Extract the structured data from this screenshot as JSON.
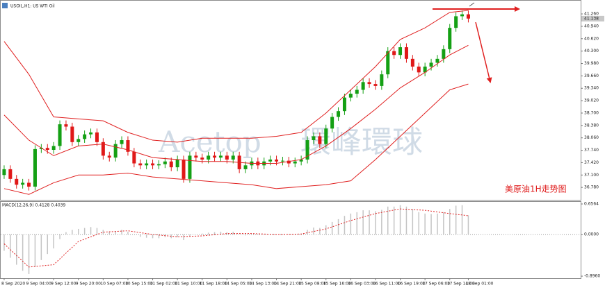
{
  "chart_data": [
    {
      "type": "candlestick",
      "title": "USOIL,H1: US WTI Oil",
      "annotation": "美原油1H走势图",
      "watermark": [
        "Acetop",
        "環峰環球"
      ],
      "categories": [
        "8 Sep 2020",
        null,
        null,
        null,
        "9 Sep 04:00",
        null,
        null,
        null,
        "9 Sep 12:00",
        null,
        null,
        null,
        "9 Sep 20:00",
        null,
        null,
        null,
        "10 Sep 07:00",
        null,
        null,
        null,
        "10 Sep 15:00",
        null,
        null,
        null,
        "11 Sep 02:00",
        null,
        null,
        null,
        "11 Sep 10:00",
        null,
        null,
        null,
        "11 Sep 18:00",
        null,
        null,
        null,
        "14 Sep 05:00",
        null,
        null,
        null,
        "14 Sep 13:00",
        null,
        null,
        null,
        "14 Sep 21:00",
        null,
        null,
        null,
        "15 Sep 08:00",
        null,
        null,
        null,
        "15 Sep 16:00",
        null,
        null,
        null,
        "16 Sep 03:00",
        null,
        null,
        null,
        "16 Sep 11:00",
        null,
        null,
        null,
        "16 Sep 19:00",
        null,
        null,
        null,
        "17 Sep 06:00",
        null,
        null,
        null,
        "17 Sep 14:00",
        null,
        null,
        "18 Sep 01:00"
      ],
      "open": [
        37.1,
        37.25,
        37.0,
        36.85,
        36.9,
        36.8,
        37.77,
        37.8,
        37.75,
        37.85,
        38.41,
        38.35,
        37.95,
        38.03,
        38.15,
        38.2,
        37.95,
        37.6,
        37.55,
        37.9,
        38.0,
        37.7,
        37.4,
        37.35,
        37.4,
        37.35,
        37.38,
        37.45,
        37.3,
        37.5,
        37.0,
        37.6,
        37.55,
        37.5,
        37.6,
        37.55,
        37.6,
        37.5,
        37.6,
        37.25,
        37.35,
        37.45,
        37.35,
        37.45,
        37.5,
        37.45,
        37.47,
        37.4,
        37.45,
        37.5,
        38.0,
        38.1,
        37.9,
        38.3,
        38.6,
        38.75,
        39.1,
        39.2,
        39.3,
        39.5,
        39.45,
        39.4,
        39.7,
        40.3,
        40.2,
        40.4,
        40.1,
        39.9,
        39.75,
        39.9,
        40.0,
        40.1,
        40.35,
        40.9,
        41.2,
        41.25
      ],
      "high": [
        37.35,
        37.35,
        37.1,
        37.0,
        37.0,
        37.87,
        37.9,
        37.9,
        37.95,
        38.51,
        38.51,
        38.45,
        38.13,
        38.25,
        38.3,
        38.3,
        38.05,
        37.7,
        38.0,
        38.1,
        38.1,
        37.8,
        37.5,
        37.5,
        37.5,
        37.48,
        37.55,
        37.55,
        37.6,
        37.6,
        37.7,
        37.7,
        37.65,
        37.7,
        37.7,
        37.7,
        37.7,
        37.7,
        37.7,
        37.45,
        37.55,
        37.55,
        37.55,
        37.6,
        37.6,
        37.57,
        37.57,
        37.55,
        37.6,
        38.1,
        38.2,
        38.2,
        38.4,
        38.7,
        38.85,
        39.2,
        39.3,
        39.4,
        39.6,
        39.6,
        39.55,
        39.8,
        40.4,
        40.4,
        40.5,
        40.5,
        40.2,
        40.0,
        40.0,
        40.1,
        40.2,
        40.45,
        41.0,
        41.3,
        41.35,
        41.35
      ],
      "low": [
        37.0,
        36.9,
        36.75,
        36.75,
        36.7,
        36.7,
        37.67,
        37.65,
        37.65,
        37.75,
        38.25,
        37.85,
        37.85,
        37.93,
        38.05,
        37.85,
        37.5,
        37.45,
        37.45,
        37.8,
        37.6,
        37.3,
        37.25,
        37.25,
        37.25,
        37.25,
        37.28,
        37.2,
        37.2,
        36.9,
        36.9,
        37.45,
        37.4,
        37.4,
        37.45,
        37.45,
        37.4,
        37.4,
        37.15,
        37.15,
        37.25,
        37.25,
        37.25,
        37.35,
        37.35,
        37.35,
        37.3,
        37.3,
        37.35,
        37.4,
        37.9,
        37.8,
        37.8,
        38.2,
        38.5,
        38.65,
        39.0,
        39.1,
        39.2,
        39.35,
        39.3,
        39.3,
        39.6,
        40.1,
        40.1,
        40.0,
        39.8,
        39.65,
        39.65,
        39.8,
        39.9,
        40.0,
        40.25,
        40.8,
        41.1,
        41.04
      ],
      "close": [
        37.25,
        37.0,
        36.85,
        36.9,
        36.8,
        37.77,
        37.8,
        37.75,
        37.85,
        38.41,
        38.35,
        37.95,
        38.03,
        38.15,
        38.2,
        37.95,
        37.6,
        37.55,
        37.9,
        38.0,
        37.7,
        37.4,
        37.35,
        37.4,
        37.35,
        37.38,
        37.45,
        37.3,
        37.5,
        37.0,
        37.6,
        37.55,
        37.5,
        37.6,
        37.55,
        37.6,
        37.5,
        37.6,
        37.25,
        37.35,
        37.45,
        37.35,
        37.45,
        37.5,
        37.45,
        37.47,
        37.4,
        37.45,
        37.5,
        38.0,
        38.1,
        37.9,
        38.3,
        38.6,
        38.75,
        39.1,
        39.2,
        39.3,
        39.5,
        39.45,
        39.4,
        39.7,
        40.3,
        40.2,
        40.4,
        40.1,
        39.9,
        39.75,
        39.9,
        40.0,
        40.1,
        40.35,
        40.9,
        41.2,
        41.25,
        41.14
      ],
      "up_color": "#14a014",
      "down_color": "#e01818",
      "bands": {
        "x": [
          0,
          4,
          8,
          12,
          16,
          20,
          24,
          28,
          32,
          36,
          40,
          44,
          48,
          52,
          56,
          60,
          64,
          68,
          72,
          75
        ],
        "series": [
          {
            "color": "#e02020",
            "values": [
              40.55,
              39.7,
              38.6,
              38.55,
              38.5,
              38.2,
              38.0,
              37.95,
              38.05,
              38.05,
              38.05,
              38.1,
              38.2,
              38.7,
              39.3,
              39.9,
              40.6,
              40.9,
              41.3,
              41.35
            ]
          },
          {
            "color": "#e02020",
            "values": [
              38.65,
              38.0,
              37.6,
              37.85,
              37.9,
              37.75,
              37.55,
              37.5,
              37.45,
              37.45,
              37.4,
              37.4,
              37.5,
              37.85,
              38.3,
              38.8,
              39.35,
              39.75,
              40.2,
              40.45
            ]
          },
          {
            "color": "#e02020",
            "values": [
              36.75,
              36.6,
              36.9,
              37.1,
              37.1,
              37.15,
              37.05,
              37.0,
              36.95,
              36.9,
              36.85,
              36.75,
              36.8,
              36.85,
              36.95,
              37.5,
              38.1,
              38.7,
              39.3,
              39.45
            ]
          }
        ]
      },
      "last_price": {
        "value": 41.138,
        "label": "41.138"
      },
      "ylim": [
        36.46,
        41.53
      ],
      "yticks": [
        {
          "value": 41.26,
          "label": "41.260"
        },
        {
          "value": 40.94,
          "label": "40.940"
        },
        {
          "value": 40.62,
          "label": "40.620"
        },
        {
          "value": 40.3,
          "label": "40.300"
        },
        {
          "value": 39.98,
          "label": "39.980"
        },
        {
          "value": 39.66,
          "label": "39.660"
        },
        {
          "value": 39.34,
          "label": "39.340"
        },
        {
          "value": 39.02,
          "label": "39.020"
        },
        {
          "value": 38.7,
          "label": "38.700"
        },
        {
          "value": 38.38,
          "label": "38.380"
        },
        {
          "value": 38.06,
          "label": "38.060"
        },
        {
          "value": 37.74,
          "label": "37.740"
        },
        {
          "value": 37.42,
          "label": "37.420"
        },
        {
          "value": 37.1,
          "label": "37.100"
        },
        {
          "value": 36.78,
          "label": "36.780"
        }
      ]
    },
    {
      "type": "macd",
      "title": "MACD(12,26,9) 0.4128 0.4039",
      "values": [
        -0.35,
        -0.5,
        -0.65,
        -0.78,
        -0.85,
        -0.7,
        -0.55,
        -0.42,
        -0.3,
        -0.1,
        0.05,
        0.1,
        0.12,
        0.14,
        0.16,
        0.14,
        0.1,
        0.06,
        0.07,
        0.1,
        0.06,
        0.0,
        -0.05,
        -0.07,
        -0.08,
        -0.08,
        -0.06,
        -0.08,
        -0.06,
        -0.12,
        -0.04,
        0.0,
        0.02,
        0.04,
        0.05,
        0.06,
        0.05,
        0.06,
        0.0,
        -0.02,
        0.0,
        -0.01,
        0.0,
        0.01,
        0.01,
        0.01,
        0.0,
        0.01,
        0.02,
        0.1,
        0.15,
        0.14,
        0.2,
        0.27,
        0.33,
        0.4,
        0.45,
        0.48,
        0.52,
        0.52,
        0.5,
        0.53,
        0.6,
        0.6,
        0.63,
        0.6,
        0.55,
        0.48,
        0.45,
        0.44,
        0.45,
        0.48,
        0.55,
        0.62,
        0.63,
        0.4128
      ],
      "color": "#c4c4c4",
      "signal": {
        "color": "#e02020",
        "x": [
          0,
          4,
          8,
          12,
          16,
          20,
          24,
          28,
          32,
          36,
          40,
          44,
          48,
          52,
          56,
          60,
          64,
          68,
          72,
          75
        ],
        "values": [
          -0.2,
          -0.7,
          -0.65,
          -0.15,
          0.05,
          0.08,
          0.0,
          -0.05,
          -0.03,
          0.02,
          0.02,
          0.0,
          0.01,
          0.12,
          0.3,
          0.45,
          0.55,
          0.52,
          0.45,
          0.4039
        ]
      },
      "zero_line": true,
      "ylim": [
        -0.94,
        0.701
      ],
      "yticks": [
        {
          "value": 0.6564,
          "label": "0.6564"
        },
        {
          "value": 0,
          "label": "0.0000"
        },
        {
          "value": -0.896,
          "label": "-0.8960"
        }
      ]
    }
  ]
}
